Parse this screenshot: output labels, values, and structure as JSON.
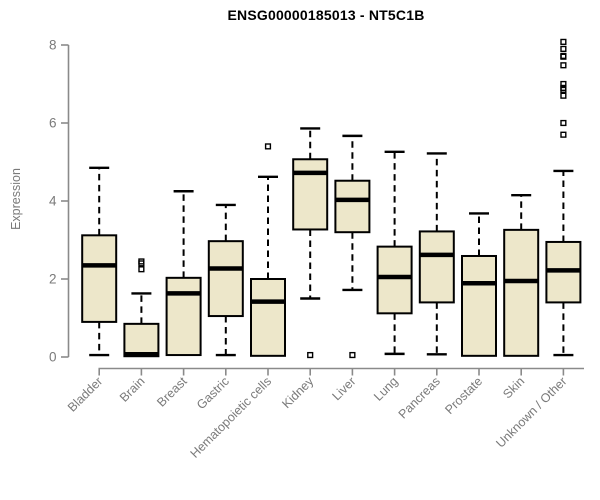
{
  "page": {
    "background": "#ffffff"
  },
  "chart_data": {
    "type": "boxplot",
    "title": "ENSG00000185013 - NT5C1B",
    "ylabel": "Expression",
    "xlabel": "",
    "ylim": [
      0,
      8
    ],
    "yticks": [
      0,
      2,
      4,
      6,
      8
    ],
    "grid": false,
    "legend": false,
    "marker": "open-square",
    "categories": [
      "Bladder",
      "Brain",
      "Breast",
      "Gastric",
      "Hematopoietic cells",
      "Kidney",
      "Liver",
      "Lung",
      "Pancreas",
      "Prostate",
      "Skin",
      "Unknown / Other"
    ],
    "series": [
      {
        "category": "Bladder",
        "whisker_low": 0.05,
        "q1": 0.9,
        "median": 2.35,
        "q3": 3.12,
        "whisker_high": 4.85,
        "outliers": []
      },
      {
        "category": "Brain",
        "whisker_low": 0.0,
        "q1": 0.02,
        "median": 0.07,
        "q3": 0.85,
        "whisker_high": 1.63,
        "outliers": [
          2.25,
          2.4,
          2.45
        ]
      },
      {
        "category": "Breast",
        "whisker_low": 0.05,
        "q1": 0.05,
        "median": 1.63,
        "q3": 2.03,
        "whisker_high": 4.25,
        "outliers": []
      },
      {
        "category": "Gastric",
        "whisker_low": 0.05,
        "q1": 1.05,
        "median": 2.27,
        "q3": 2.97,
        "whisker_high": 3.9,
        "outliers": []
      },
      {
        "category": "Hematopoietic cells",
        "whisker_low": 0.03,
        "q1": 0.03,
        "median": 1.42,
        "q3": 2.0,
        "whisker_high": 4.62,
        "outliers": [
          5.4
        ]
      },
      {
        "category": "Kidney",
        "whisker_low": 1.5,
        "q1": 3.27,
        "median": 4.72,
        "q3": 5.07,
        "whisker_high": 5.86,
        "outliers": [
          0.05
        ]
      },
      {
        "category": "Liver",
        "whisker_low": 1.72,
        "q1": 3.2,
        "median": 4.03,
        "q3": 4.52,
        "whisker_high": 5.67,
        "outliers": [
          0.05
        ]
      },
      {
        "category": "Lung",
        "whisker_low": 0.08,
        "q1": 1.12,
        "median": 2.05,
        "q3": 2.83,
        "whisker_high": 5.26,
        "outliers": []
      },
      {
        "category": "Pancreas",
        "whisker_low": 0.07,
        "q1": 1.4,
        "median": 2.62,
        "q3": 3.22,
        "whisker_high": 5.22,
        "outliers": []
      },
      {
        "category": "Prostate",
        "whisker_low": 0.03,
        "q1": 0.03,
        "median": 1.89,
        "q3": 2.59,
        "whisker_high": 3.68,
        "outliers": []
      },
      {
        "category": "Skin",
        "whisker_low": 0.03,
        "q1": 0.03,
        "median": 1.95,
        "q3": 3.26,
        "whisker_high": 4.15,
        "outliers": []
      },
      {
        "category": "Unknown / Other",
        "whisker_low": 0.05,
        "q1": 1.4,
        "median": 2.22,
        "q3": 2.95,
        "whisker_high": 4.77,
        "outliers": [
          5.7,
          6.0,
          6.7,
          6.85,
          6.9,
          7.0,
          7.48,
          7.7,
          7.72,
          7.9,
          8.08
        ]
      }
    ],
    "colors": {
      "box_fill": "#EDE7CA",
      "box_stroke": "#000000",
      "median": "#000000",
      "whisker": "#000000",
      "axis": "#8a8a8a",
      "tick_label": "#7a7a7a",
      "title": "#000000"
    }
  }
}
